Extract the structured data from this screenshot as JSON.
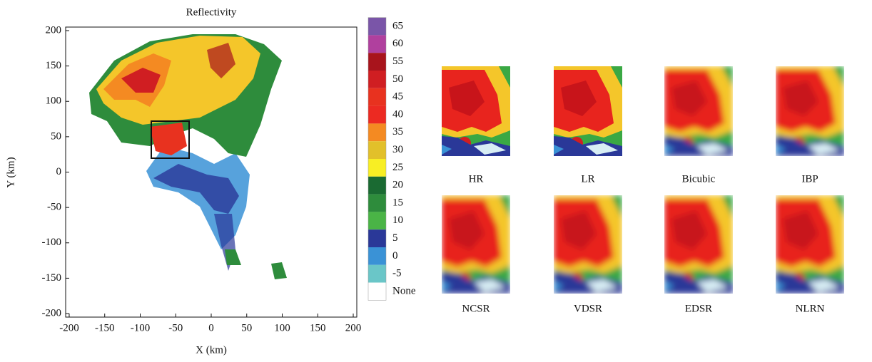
{
  "radar_plot": {
    "title": "Reflectivity",
    "xlabel": "X (km)",
    "ylabel": "Y (km)",
    "xlim": [
      -205,
      205
    ],
    "ylim": [
      -205,
      205
    ],
    "xticks": [
      -200,
      -150,
      -100,
      -50,
      0,
      50,
      100,
      150,
      200
    ],
    "yticks": [
      -200,
      -150,
      -100,
      -50,
      0,
      50,
      100,
      150,
      200
    ]
  },
  "colorbar": {
    "levels": [
      65,
      60,
      55,
      50,
      45,
      40,
      35,
      30,
      25,
      20,
      15,
      10,
      5,
      0,
      -5,
      "None"
    ],
    "colors": [
      "#7a55a8",
      "#b0409e",
      "#a8141c",
      "#d01e22",
      "#e8321f",
      "#ec2a22",
      "#f48a22",
      "#e2c02a",
      "#f8ee24",
      "#1a6a32",
      "#2e8c3c",
      "#4ab446",
      "#2a3898",
      "#3a92d6",
      "#6ac6c8",
      "#ffffff"
    ]
  },
  "panels": [
    "HR",
    "LR",
    "Bicubic",
    "IBP",
    "NCSR",
    "VDSR",
    "EDSR",
    "NLRN"
  ]
}
